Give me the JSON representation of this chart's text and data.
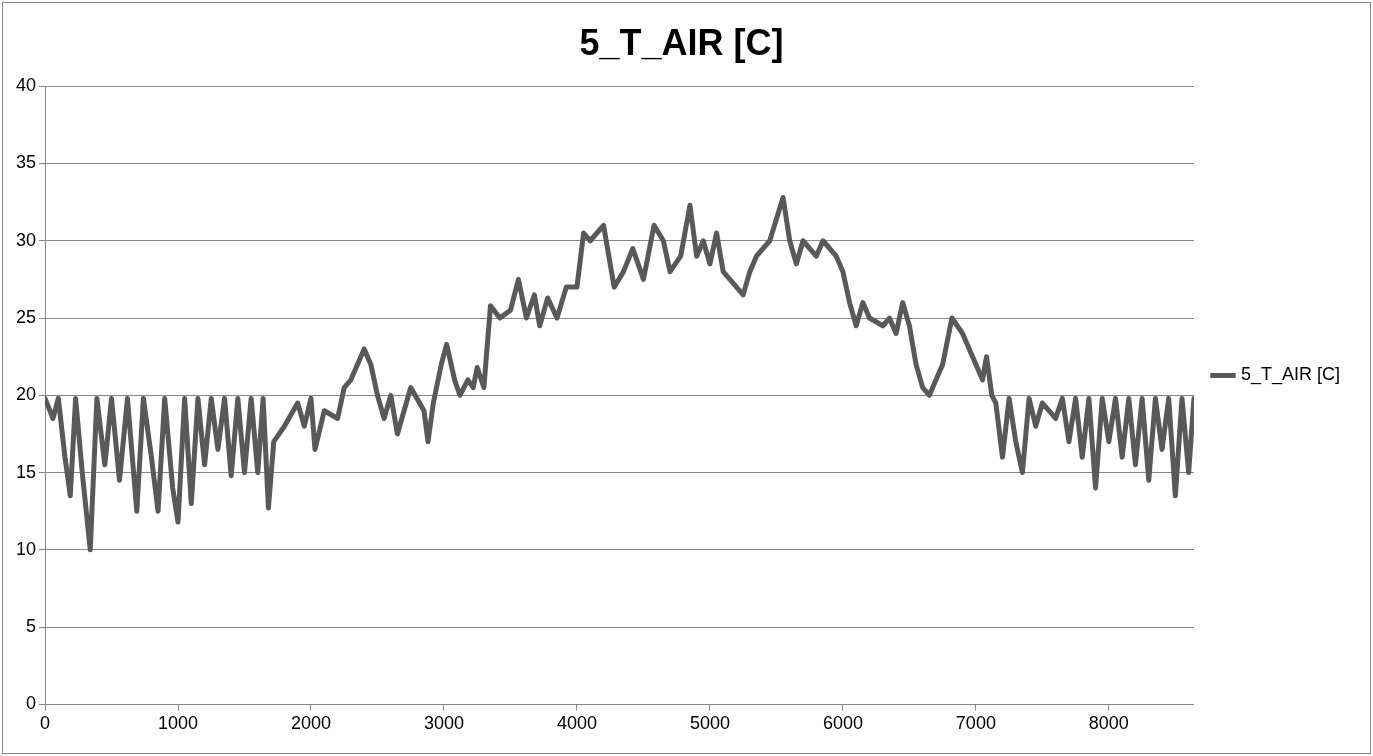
{
  "chart_data": {
    "type": "line",
    "title": "5_T_AIR [C]",
    "xlim": [
      0,
      8640
    ],
    "xticks": [
      0,
      1000,
      2000,
      3000,
      4000,
      5000,
      6000,
      7000,
      8000
    ],
    "ylim": [
      0,
      40
    ],
    "yticks": [
      0,
      5,
      10,
      15,
      20,
      25,
      30,
      35,
      40
    ],
    "grid": "y",
    "legend": "right",
    "marker": "none",
    "line_style": "solid",
    "series": [
      {
        "name": "5_T_AIR [C]",
        "color": "#595959",
        "x": [
          0,
          60,
          100,
          150,
          190,
          230,
          280,
          340,
          390,
          450,
          500,
          560,
          620,
          690,
          740,
          800,
          850,
          900,
          960,
          1000,
          1050,
          1100,
          1150,
          1200,
          1250,
          1300,
          1350,
          1400,
          1450,
          1500,
          1550,
          1600,
          1640,
          1680,
          1720,
          1800,
          1900,
          1950,
          2000,
          2030,
          2100,
          2200,
          2250,
          2300,
          2400,
          2450,
          2500,
          2550,
          2600,
          2650,
          2700,
          2750,
          2850,
          2880,
          2920,
          2980,
          3020,
          3080,
          3120,
          3180,
          3220,
          3250,
          3300,
          3350,
          3420,
          3500,
          3560,
          3620,
          3680,
          3720,
          3780,
          3850,
          3920,
          4000,
          4050,
          4100,
          4200,
          4280,
          4350,
          4420,
          4500,
          4580,
          4650,
          4700,
          4780,
          4850,
          4900,
          4950,
          5000,
          5050,
          5100,
          5200,
          5250,
          5300,
          5350,
          5450,
          5550,
          5600,
          5650,
          5700,
          5800,
          5850,
          5950,
          6000,
          6050,
          6100,
          6150,
          6200,
          6300,
          6350,
          6400,
          6450,
          6500,
          6550,
          6600,
          6650,
          6700,
          6750,
          6820,
          6900,
          6950,
          7000,
          7050,
          7080,
          7120,
          7150,
          7200,
          7250,
          7300,
          7350,
          7400,
          7450,
          7500,
          7600,
          7650,
          7700,
          7750,
          7800,
          7850,
          7900,
          7950,
          8000,
          8050,
          8100,
          8150,
          8200,
          8250,
          8300,
          8350,
          8400,
          8450,
          8500,
          8550,
          8600,
          8640
        ],
        "values": [
          19.8,
          18.5,
          19.8,
          16,
          13.5,
          19.8,
          15,
          10,
          19.8,
          15.5,
          19.8,
          14.5,
          19.8,
          12.5,
          19.8,
          16,
          12.5,
          19.8,
          14,
          11.8,
          19.8,
          13,
          19.8,
          15.5,
          19.8,
          16.5,
          19.8,
          14.8,
          19.8,
          15,
          19.8,
          15,
          19.8,
          12.7,
          17,
          18,
          19.5,
          18,
          19.8,
          16.5,
          19,
          18.5,
          20.5,
          21,
          23,
          22,
          20,
          18.5,
          20,
          17.5,
          19,
          20.5,
          19,
          17,
          19.5,
          22,
          23.3,
          21,
          20,
          21,
          20.5,
          21.8,
          20.5,
          25.8,
          25,
          25.5,
          27.5,
          25,
          26.5,
          24.5,
          26.3,
          25,
          27,
          27,
          30.5,
          30,
          31,
          27,
          28,
          29.5,
          27.5,
          31,
          30,
          28,
          29,
          32.3,
          29,
          30,
          28.5,
          30.5,
          28,
          27,
          26.5,
          28,
          29,
          30,
          32.8,
          30,
          28.5,
          30,
          29,
          30,
          29,
          28,
          26,
          24.5,
          26,
          25,
          24.5,
          25,
          24,
          26,
          24.5,
          22,
          20.5,
          20,
          21,
          22,
          25,
          24,
          23,
          22,
          21,
          22.5,
          20,
          19.5,
          16,
          19.8,
          17,
          15,
          19.8,
          18,
          19.5,
          18.5,
          19.8,
          17,
          19.8,
          16,
          19.8,
          14,
          19.8,
          17,
          19.8,
          16,
          19.8,
          15.5,
          19.8,
          14.5,
          19.8,
          16.5,
          19.8,
          13.5,
          19.8,
          15,
          19.8
        ]
      }
    ]
  }
}
